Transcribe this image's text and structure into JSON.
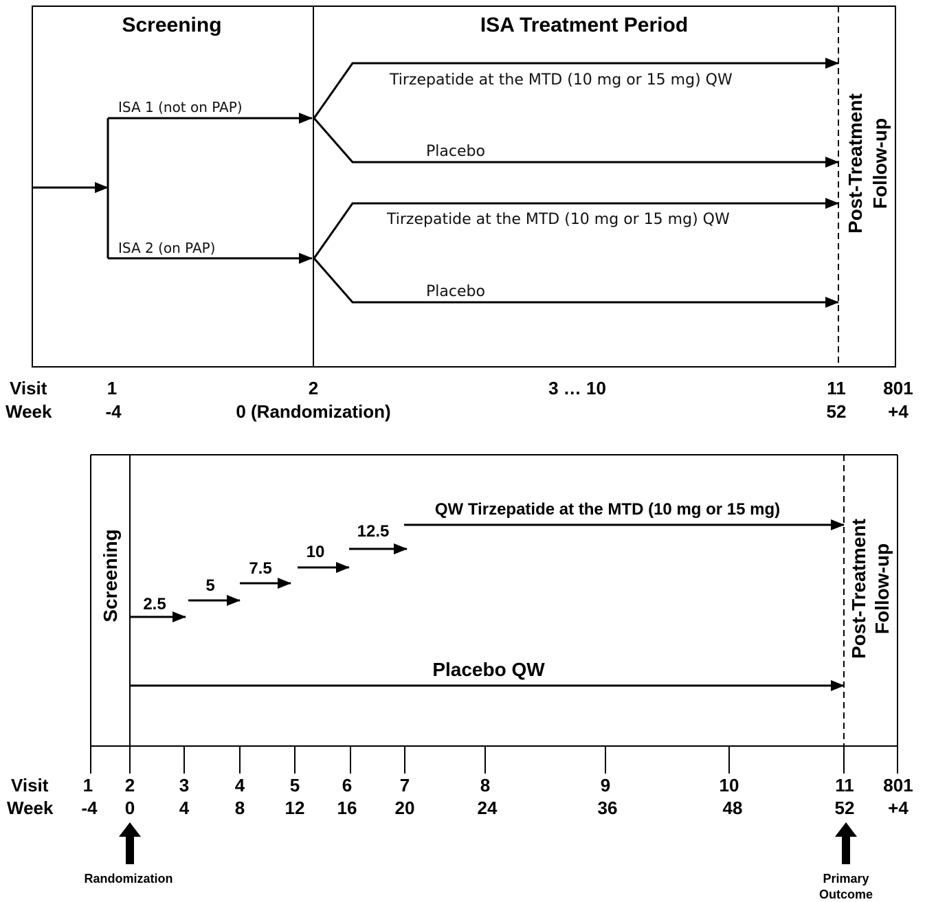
{
  "panel1": {
    "header_screening": "Screening",
    "header_treatment": "ISA Treatment Period",
    "isa1_label": "ISA 1 (not on PAP)",
    "isa2_label": "ISA 2 (on PAP)",
    "arm_tirzepatide": "Tirzepatide at the MTD (10 mg or 15 mg) QW",
    "arm_placebo": "Placebo",
    "followup_line1": "Post-Treatment",
    "followup_line2": "Follow-up",
    "visit_label": "Visit",
    "week_label": "Week",
    "visits": [
      "1",
      "2",
      "3 … 10",
      "11",
      "801"
    ],
    "weeks": [
      "-4",
      "0 (Randomization)",
      "52",
      "+4"
    ]
  },
  "panel2": {
    "screening_label": "Screening",
    "dose_steps": [
      "2.5",
      "5",
      "7.5",
      "10",
      "12.5"
    ],
    "mtd_label": "QW Tirzepatide at the MTD (10 mg or 15 mg)",
    "placebo_label": "Placebo QW",
    "followup_line1": "Post-Treatment",
    "followup_line2": "Follow-up",
    "visit_label": "Visit",
    "week_label": "Week",
    "visits": [
      "1",
      "2",
      "3",
      "4",
      "5",
      "6",
      "7",
      "8",
      "9",
      "10",
      "11",
      "801"
    ],
    "weeks": [
      "-4",
      "0",
      "4",
      "8",
      "12",
      "16",
      "20",
      "24",
      "36",
      "48",
      "52",
      "+4"
    ],
    "randomization_label": "Randomization",
    "primary_outcome_line1": "Primary",
    "primary_outcome_line2": "Outcome"
  }
}
